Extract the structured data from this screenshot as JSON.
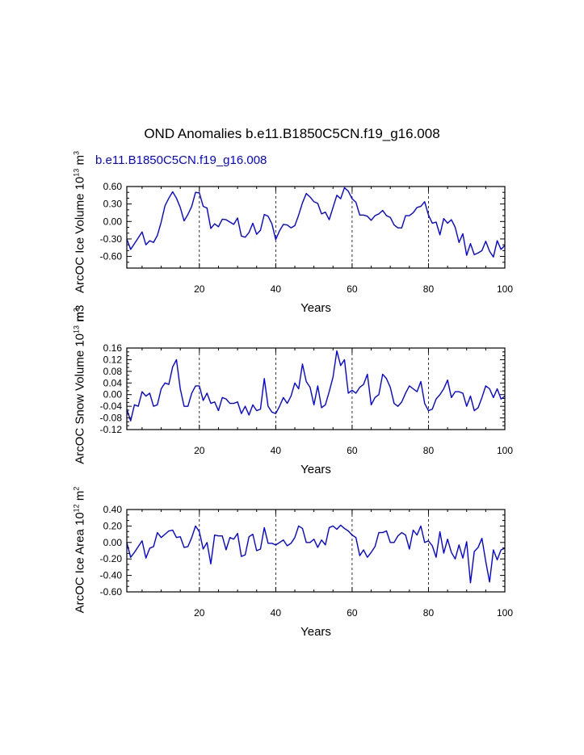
{
  "title": "OND Anomalies b.e11.B1850C5CN.f19_g16.008",
  "case_label": "b.e11.B1850C5CN.f19_g16.008",
  "line_color": "#0000ff",
  "chart_data": [
    {
      "type": "line",
      "name": "ice-volume",
      "ylabel_parts": [
        "ArcOC Ice Volume 10",
        "13",
        " m",
        "3"
      ],
      "ylabel_overlap": "m3",
      "xlabel": "Years",
      "xlim": [
        1,
        100
      ],
      "ylim": [
        -0.8,
        0.6
      ],
      "yticks": [
        0.6,
        0.3,
        0.0,
        -0.3,
        -0.6
      ],
      "ytick_labels": [
        "0.60",
        "0.30",
        "0.00",
        "-0.30",
        "-0.60"
      ],
      "xticks": [
        20,
        40,
        60,
        80,
        100
      ],
      "xtick_labels": [
        "20",
        "40",
        "60",
        "80",
        "100"
      ],
      "gridlines_x": [
        20,
        40,
        60,
        80
      ],
      "x_start": 1,
      "values": [
        -0.3,
        -0.48,
        -0.38,
        -0.28,
        -0.18,
        -0.4,
        -0.33,
        -0.36,
        -0.24,
        -0.01,
        0.27,
        0.4,
        0.51,
        0.4,
        0.24,
        0.01,
        0.12,
        0.26,
        0.5,
        0.49,
        0.26,
        0.23,
        -0.12,
        -0.04,
        -0.09,
        0.04,
        0.03,
        -0.01,
        -0.05,
        0.06,
        -0.25,
        -0.27,
        -0.19,
        -0.03,
        -0.22,
        -0.15,
        0.12,
        0.09,
        -0.04,
        -0.31,
        -0.16,
        -0.05,
        -0.06,
        -0.11,
        -0.07,
        0.11,
        0.32,
        0.48,
        0.42,
        0.34,
        0.31,
        0.13,
        0.16,
        0.03,
        0.24,
        0.45,
        0.39,
        0.58,
        0.52,
        0.39,
        0.33,
        0.11,
        0.11,
        0.09,
        0.02,
        0.1,
        0.13,
        0.19,
        0.1,
        0.07,
        -0.06,
        -0.11,
        -0.11,
        0.1,
        0.1,
        0.15,
        0.24,
        0.26,
        0.34,
        0.11,
        -0.03,
        -0.01,
        -0.23,
        0.05,
        -0.03,
        0.03,
        -0.1,
        -0.36,
        -0.21,
        -0.58,
        -0.38,
        -0.57,
        -0.54,
        -0.5,
        -0.34,
        -0.51,
        -0.61,
        -0.33,
        -0.48,
        -0.41
      ]
    },
    {
      "type": "line",
      "name": "snow-volume",
      "ylabel_parts": [
        "ArcOC Snow Volume 10",
        "13",
        " m",
        "3"
      ],
      "xlabel": "Years",
      "xlim": [
        1,
        100
      ],
      "ylim": [
        -0.12,
        0.16
      ],
      "yticks": [
        0.16,
        0.12,
        0.08,
        0.04,
        0.0,
        -0.04,
        -0.08,
        -0.12
      ],
      "ytick_labels": [
        "0.16",
        "0.12",
        "0.08",
        "0.04",
        "0.00",
        "-0.04",
        "-0.08",
        "-0.12"
      ],
      "xticks": [
        20,
        40,
        60,
        80,
        100
      ],
      "xtick_labels": [
        "20",
        "40",
        "60",
        "80",
        "100"
      ],
      "gridlines_x": [
        20,
        40,
        60,
        80
      ],
      "x_start": 1,
      "values": [
        -0.05,
        -0.09,
        -0.035,
        -0.04,
        0.01,
        -0.005,
        0.005,
        -0.04,
        -0.035,
        0.02,
        0.04,
        0.035,
        0.095,
        0.12,
        0.02,
        -0.04,
        -0.04,
        0.005,
        0.03,
        0.03,
        -0.02,
        0.005,
        -0.03,
        -0.025,
        -0.055,
        -0.01,
        -0.015,
        -0.03,
        -0.03,
        -0.025,
        -0.065,
        -0.04,
        -0.07,
        -0.035,
        -0.055,
        -0.05,
        0.055,
        -0.04,
        -0.06,
        -0.065,
        -0.04,
        -0.01,
        -0.03,
        -0.005,
        0.04,
        0.02,
        0.105,
        0.045,
        0.025,
        -0.035,
        0.03,
        -0.045,
        -0.035,
        0.01,
        0.06,
        0.15,
        0.1,
        0.12,
        0.005,
        0.015,
        0.005,
        0.025,
        0.035,
        0.07,
        -0.035,
        -0.01,
        0.0,
        0.07,
        0.055,
        0.025,
        -0.03,
        -0.04,
        -0.025,
        0.005,
        0.03,
        0.02,
        0.01,
        0.045,
        -0.03,
        -0.055,
        -0.05,
        -0.015,
        0.0,
        0.02,
        0.05,
        -0.01,
        0.01,
        0.01,
        0.005,
        -0.04,
        -0.005,
        -0.055,
        -0.045,
        -0.01,
        0.03,
        0.02,
        -0.01,
        0.02,
        -0.015,
        -0.005
      ]
    },
    {
      "type": "line",
      "name": "ice-area",
      "ylabel_parts": [
        "ArcOC Ice Area 10",
        "12",
        " m",
        "2"
      ],
      "xlabel": "Years",
      "xlim": [
        1,
        100
      ],
      "ylim": [
        -0.6,
        0.4
      ],
      "yticks": [
        0.4,
        0.2,
        0.0,
        -0.2,
        -0.4,
        -0.6
      ],
      "ytick_labels": [
        "0.40",
        "0.20",
        "0.00",
        "-0.20",
        "-0.40",
        "-0.60"
      ],
      "xticks": [
        20,
        40,
        60,
        80,
        100
      ],
      "xtick_labels": [
        "20",
        "40",
        "60",
        "80",
        "100"
      ],
      "gridlines_x": [
        20,
        40,
        60,
        80
      ],
      "x_start": 1,
      "values": [
        0.0,
        -0.18,
        -0.12,
        -0.05,
        0.02,
        -0.19,
        -0.07,
        -0.05,
        0.12,
        0.06,
        0.1,
        0.14,
        0.15,
        0.06,
        0.07,
        -0.06,
        -0.05,
        0.06,
        0.2,
        0.13,
        -0.08,
        0.0,
        -0.26,
        0.09,
        0.08,
        0.08,
        -0.09,
        0.06,
        0.04,
        0.11,
        -0.17,
        -0.15,
        0.07,
        0.1,
        -0.1,
        -0.08,
        0.18,
        -0.01,
        -0.01,
        -0.03,
        0.0,
        0.03,
        -0.04,
        -0.01,
        0.06,
        0.2,
        0.17,
        0.0,
        0.0,
        0.04,
        -0.06,
        0.03,
        -0.03,
        0.18,
        0.2,
        0.16,
        0.21,
        0.17,
        0.14,
        0.09,
        0.06,
        -0.16,
        -0.09,
        -0.18,
        -0.12,
        -0.05,
        0.12,
        0.12,
        0.14,
        0.0,
        0.0,
        0.08,
        0.12,
        0.09,
        -0.08,
        0.15,
        0.09,
        0.2,
        0.0,
        0.02,
        -0.04,
        -0.18,
        0.13,
        -0.13,
        0.04,
        -0.12,
        -0.2,
        -0.03,
        -0.19,
        0.01,
        -0.49,
        -0.11,
        -0.06,
        0.05,
        -0.23,
        -0.48,
        -0.09,
        -0.21,
        -0.09,
        -0.07
      ]
    }
  ]
}
